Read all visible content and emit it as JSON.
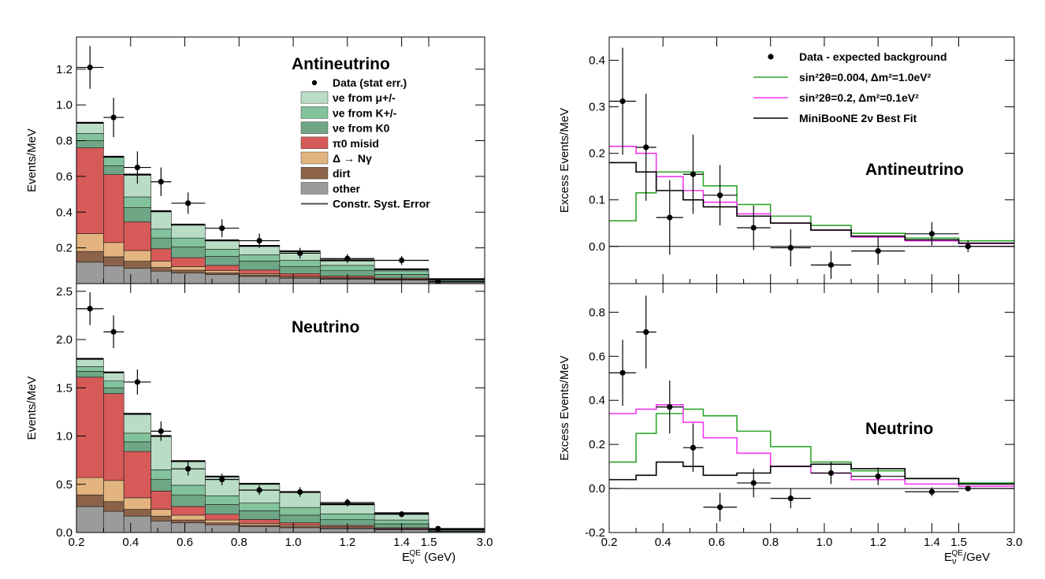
{
  "colors": {
    "nue_mu": "#b9dcc5",
    "nue_kpm": "#82c39b",
    "nue_k0": "#6fa686",
    "pi0": "#d65a57",
    "delta": "#e3b47f",
    "dirt": "#8c6249",
    "other": "#9b9b9b",
    "green_fit": "#2fa52b",
    "magenta_fit": "#f238ee",
    "black_fit": "#000000"
  },
  "chart_data": [
    {
      "type": "bar",
      "stacked": true,
      "title": "Antineutrino",
      "ylabel": "Events/MeV",
      "xlabel": "",
      "ylim": [
        0,
        1.38
      ],
      "yticks": [
        "0.2",
        "0.4",
        "0.6",
        "0.8",
        "1.0",
        "1.2"
      ],
      "ytick_values": [
        0.2,
        0.4,
        0.6,
        0.8,
        1.0,
        1.2
      ],
      "bin_edges": [
        0.2,
        0.3,
        0.375,
        0.475,
        0.55,
        0.675,
        0.8,
        0.95,
        1.1,
        1.3,
        1.5,
        3.0
      ],
      "series": [
        {
          "name": "other",
          "color_key": "other",
          "values": [
            0.12,
            0.1,
            0.085,
            0.07,
            0.06,
            0.05,
            0.04,
            0.03,
            0.025,
            0.02,
            0.008
          ]
        },
        {
          "name": "dirt",
          "color_key": "dirt",
          "values": [
            0.06,
            0.05,
            0.04,
            0.02,
            0.015,
            0.01,
            0.008,
            0.006,
            0.004,
            0.003,
            0.001
          ]
        },
        {
          "name": "Δ → Nγ",
          "color_key": "delta",
          "values": [
            0.1,
            0.08,
            0.06,
            0.035,
            0.02,
            0.012,
            0.008,
            0.005,
            0.003,
            0.002,
            0.001
          ]
        },
        {
          "name": "π⁰ misid",
          "color_key": "pi0",
          "values": [
            0.48,
            0.38,
            0.16,
            0.07,
            0.05,
            0.03,
            0.02,
            0.015,
            0.01,
            0.006,
            0.002
          ]
        },
        {
          "name": "νe from K⁰",
          "color_key": "nue_k0",
          "values": [
            0.04,
            0.05,
            0.08,
            0.06,
            0.06,
            0.05,
            0.05,
            0.04,
            0.03,
            0.02,
            0.006
          ]
        },
        {
          "name": "νe from K+/-",
          "color_key": "nue_kpm",
          "values": [
            0.04,
            0.05,
            0.06,
            0.05,
            0.05,
            0.04,
            0.035,
            0.035,
            0.03,
            0.02,
            0.006
          ]
        },
        {
          "name": "νe from μ+/-",
          "color_key": "nue_mu",
          "values": [
            0.06,
            0.0,
            0.125,
            0.1,
            0.075,
            0.05,
            0.05,
            0.05,
            0.028,
            0.009,
            0.001
          ]
        }
      ],
      "data": {
        "name": "Data (stat err.)",
        "x": [
          0.25,
          0.337,
          0.425,
          0.512,
          0.612,
          0.737,
          0.875,
          1.025,
          1.2,
          1.4,
          1.75
        ],
        "y": [
          1.21,
          0.93,
          0.65,
          0.57,
          0.45,
          0.31,
          0.24,
          0.17,
          0.14,
          0.13,
          0.01
        ],
        "err": [
          0.12,
          0.11,
          0.09,
          0.08,
          0.06,
          0.05,
          0.04,
          0.03,
          0.025,
          0.025,
          0.01
        ]
      },
      "legend_entries": [
        {
          "key": "data",
          "label": "Data (stat err.)"
        },
        {
          "key": "nue_mu",
          "label": "νe from μ+/-"
        },
        {
          "key": "nue_kpm",
          "label": "νe from K+/-"
        },
        {
          "key": "nue_k0",
          "label": "νe from K0"
        },
        {
          "key": "pi0",
          "label": "π0 misid"
        },
        {
          "key": "delta",
          "label": "Δ → Nγ"
        },
        {
          "key": "dirt",
          "label": "dirt"
        },
        {
          "key": "other",
          "label": "other"
        },
        {
          "key": "syst",
          "label": "Constr. Syst. Error"
        }
      ]
    },
    {
      "type": "bar",
      "stacked": true,
      "title": "Neutrino",
      "ylabel": "Events/MeV",
      "xlabel": "E_ν^QE (GeV)",
      "ylim": [
        0,
        2.58
      ],
      "xticks": [
        "0.2",
        "0.4",
        "0.6",
        "0.8",
        "1.0",
        "1.2",
        "1.4",
        "1.5",
        "3.0"
      ],
      "yticks": [
        "0.0",
        "0.5",
        "1.0",
        "1.5",
        "2.0",
        "2.5"
      ],
      "ytick_values": [
        0,
        0.5,
        1.0,
        1.5,
        2.0,
        2.5
      ],
      "bin_edges": [
        0.2,
        0.3,
        0.375,
        0.475,
        0.55,
        0.675,
        0.8,
        0.95,
        1.1,
        1.3,
        1.5,
        3.0
      ],
      "series": [
        {
          "name": "other",
          "color_key": "other",
          "values": [
            0.27,
            0.22,
            0.17,
            0.12,
            0.1,
            0.08,
            0.06,
            0.05,
            0.04,
            0.03,
            0.01
          ]
        },
        {
          "name": "dirt",
          "color_key": "dirt",
          "values": [
            0.12,
            0.1,
            0.07,
            0.05,
            0.03,
            0.02,
            0.015,
            0.01,
            0.008,
            0.005,
            0.002
          ]
        },
        {
          "name": "Δ → Nγ",
          "color_key": "delta",
          "values": [
            0.18,
            0.22,
            0.12,
            0.07,
            0.05,
            0.03,
            0.02,
            0.015,
            0.01,
            0.005,
            0.002
          ]
        },
        {
          "name": "π⁰ misid",
          "color_key": "pi0",
          "values": [
            1.04,
            0.9,
            0.48,
            0.19,
            0.09,
            0.06,
            0.04,
            0.025,
            0.015,
            0.01,
            0.003
          ]
        },
        {
          "name": "νe from K⁰",
          "color_key": "nue_k0",
          "values": [
            0.06,
            0.06,
            0.1,
            0.12,
            0.12,
            0.1,
            0.09,
            0.08,
            0.06,
            0.04,
            0.01
          ]
        },
        {
          "name": "νe from K+/-",
          "color_key": "nue_kpm",
          "values": [
            0.05,
            0.07,
            0.09,
            0.1,
            0.1,
            0.09,
            0.08,
            0.08,
            0.06,
            0.04,
            0.01
          ]
        },
        {
          "name": "νe from μ+/-",
          "color_key": "nue_mu",
          "values": [
            0.08,
            0.09,
            0.2,
            0.35,
            0.25,
            0.2,
            0.2,
            0.16,
            0.1,
            0.07,
            0.0
          ]
        }
      ],
      "data": {
        "name": "Data (stat err.)",
        "x": [
          0.25,
          0.337,
          0.425,
          0.512,
          0.612,
          0.737,
          0.875,
          1.025,
          1.2,
          1.4,
          1.75
        ],
        "y": [
          2.32,
          2.08,
          1.56,
          1.05,
          0.66,
          0.55,
          0.44,
          0.42,
          0.31,
          0.19,
          0.04
        ],
        "err": [
          0.17,
          0.17,
          0.13,
          0.1,
          0.07,
          0.06,
          0.05,
          0.05,
          0.04,
          0.03,
          0.02
        ]
      }
    },
    {
      "type": "line",
      "title": "Antineutrino",
      "ylabel": "Excess Events/MeV",
      "xlabel": "",
      "ylim": [
        -0.08,
        0.45
      ],
      "yticks": [
        "0.0",
        "0.1",
        "0.2",
        "0.3",
        "0.4"
      ],
      "ytick_values": [
        0,
        0.1,
        0.2,
        0.3,
        0.4
      ],
      "bin_edges": [
        0.2,
        0.3,
        0.375,
        0.475,
        0.55,
        0.675,
        0.8,
        0.95,
        1.1,
        1.3,
        1.5,
        3.0
      ],
      "series": [
        {
          "name": "sin²2θ=0.004, Δm²=1.0eV²",
          "color_key": "green_fit",
          "values": [
            0.055,
            0.115,
            0.16,
            0.16,
            0.13,
            0.09,
            0.065,
            0.045,
            0.028,
            0.018,
            0.012
          ]
        },
        {
          "name": "sin²2θ=0.2, Δm²=0.1eV²",
          "color_key": "magenta_fit",
          "values": [
            0.215,
            0.2,
            0.15,
            0.12,
            0.095,
            0.07,
            0.05,
            0.035,
            0.02,
            0.012,
            0.006
          ]
        },
        {
          "name": "MiniBooNE 2ν Best Fit",
          "color_key": "black_fit",
          "values": [
            0.18,
            0.16,
            0.12,
            0.1,
            0.085,
            0.065,
            0.05,
            0.035,
            0.022,
            0.014,
            0.007
          ]
        }
      ],
      "data": {
        "name": "Data - expected background",
        "x": [
          0.25,
          0.337,
          0.425,
          0.512,
          0.612,
          0.737,
          0.875,
          1.025,
          1.2,
          1.4,
          1.75
        ],
        "y": [
          0.312,
          0.213,
          0.062,
          0.155,
          0.11,
          0.04,
          -0.003,
          -0.04,
          -0.01,
          0.027,
          0.0
        ],
        "err": [
          0.115,
          0.115,
          0.08,
          0.085,
          0.065,
          0.048,
          0.04,
          0.03,
          0.03,
          0.025,
          0.012
        ]
      }
    },
    {
      "type": "line",
      "title": "Neutrino",
      "ylabel": "Excess Events/MeV",
      "xlabel": "E_ν^QE/GeV",
      "ylim": [
        -0.2,
        0.93
      ],
      "xticks": [
        "0.2",
        "0.4",
        "0.6",
        "0.8",
        "1.0",
        "1.2",
        "1.4",
        "1.5",
        "3.0"
      ],
      "yticks": [
        "-0.2",
        "0.0",
        "0.2",
        "0.4",
        "0.6",
        "0.8"
      ],
      "ytick_values": [
        -0.2,
        0,
        0.2,
        0.4,
        0.6,
        0.8
      ],
      "bin_edges": [
        0.2,
        0.3,
        0.375,
        0.475,
        0.55,
        0.675,
        0.8,
        0.95,
        1.1,
        1.3,
        1.5,
        3.0
      ],
      "series": [
        {
          "name": "sin²2θ=0.004, Δm²=1.0eV²",
          "color_key": "green_fit",
          "values": [
            0.12,
            0.25,
            0.34,
            0.36,
            0.33,
            0.26,
            0.19,
            0.12,
            0.08,
            0.045,
            0.025
          ]
        },
        {
          "name": "sin²2θ=0.2, Δm²=0.1eV²",
          "color_key": "magenta_fit",
          "values": [
            0.34,
            0.36,
            0.38,
            0.3,
            0.23,
            0.16,
            0.1,
            0.07,
            0.04,
            0.02,
            0.01
          ]
        },
        {
          "name": "MiniBooNE 2ν Best Fit",
          "color_key": "black_fit",
          "values": [
            0.04,
            0.06,
            0.12,
            0.1,
            0.06,
            0.07,
            0.1,
            0.11,
            0.09,
            0.045,
            0.02
          ]
        }
      ],
      "data": {
        "name": "Data - expected background",
        "x": [
          0.25,
          0.337,
          0.425,
          0.512,
          0.612,
          0.737,
          0.875,
          1.025,
          1.2,
          1.4,
          1.75
        ],
        "y": [
          0.525,
          0.71,
          0.37,
          0.185,
          -0.085,
          0.025,
          -0.045,
          0.07,
          0.055,
          -0.015,
          0.0
        ],
        "err": [
          0.15,
          0.165,
          0.12,
          0.11,
          0.065,
          0.065,
          0.045,
          0.05,
          0.04,
          0.02,
          0.01
        ]
      },
      "legend_entries": [
        {
          "key": "data",
          "label": "Data - expected background"
        },
        {
          "key": "green_fit",
          "label": "sin²2θ=0.004, Δm²=1.0eV²"
        },
        {
          "key": "magenta_fit",
          "label": "sin²2θ=0.2, Δm²=0.1eV²"
        },
        {
          "key": "black_fit",
          "label": "MiniBooNE 2ν Best Fit"
        }
      ]
    }
  ]
}
